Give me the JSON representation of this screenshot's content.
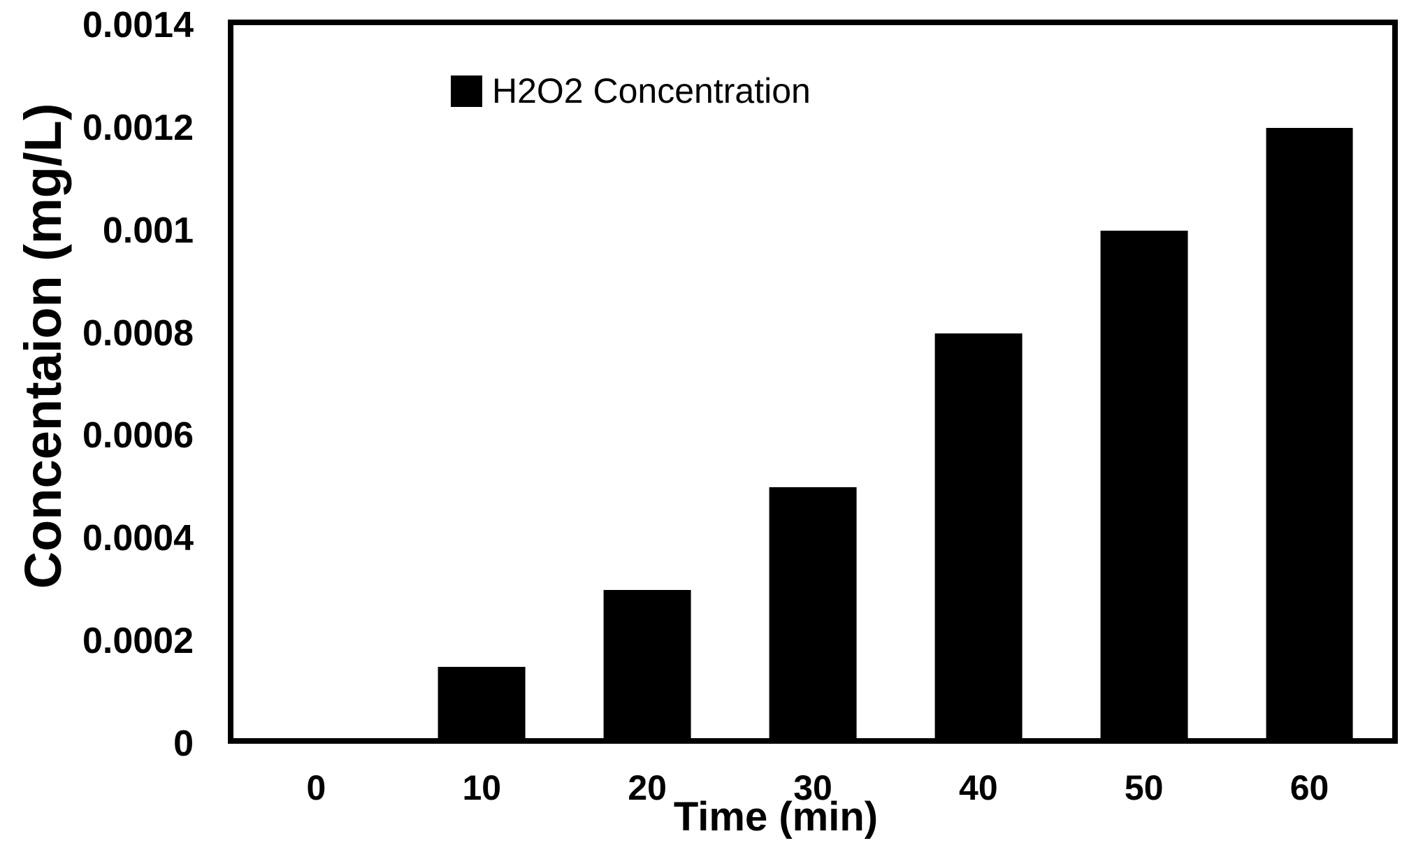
{
  "chart_data": {
    "type": "bar",
    "title": "",
    "categories": [
      "0",
      "10",
      "20",
      "30",
      "40",
      "50",
      "60"
    ],
    "series": [
      {
        "name": "H2O2 Concentration",
        "values": [
          0,
          0.00015,
          0.0003,
          0.0005,
          0.0008,
          0.001,
          0.0012
        ]
      }
    ],
    "xlabel": "Time (min)",
    "ylabel": "Concentaion (mg/L)",
    "ylim": [
      0,
      0.0014
    ],
    "ytick_labels": [
      "0.0014",
      "0.0012",
      "0.001",
      "0.0008",
      "0.0006",
      "0.0004",
      "0.0002",
      "0"
    ],
    "grid": false,
    "bar_color": "#000000",
    "bar_width_fraction": 0.527,
    "axis_box_color": "#000000",
    "background_color": "#ffffff",
    "legend": {
      "position": "top-center-inside",
      "entries": [
        {
          "label": "H2O2 Concentration",
          "marker": "filled-square",
          "color": "#000000"
        }
      ]
    }
  }
}
